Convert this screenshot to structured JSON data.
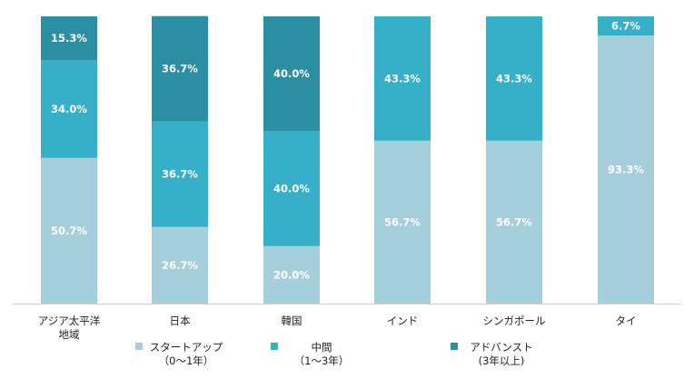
{
  "chart_data": {
    "type": "bar",
    "stacked": true,
    "categories": [
      [
        "アジア太平洋",
        "地域"
      ],
      [
        "日本"
      ],
      [
        "韓国"
      ],
      [
        "インド"
      ],
      [
        "シンガポール"
      ],
      [
        "タイ"
      ]
    ],
    "series": [
      {
        "name_lines": [
          "スタートアップ",
          "（0～1年）"
        ],
        "color": "#a6cfdc",
        "values": [
          50.7,
          26.7,
          20.0,
          56.7,
          56.7,
          93.3
        ]
      },
      {
        "name_lines": [
          "中間",
          "（1～3年）"
        ],
        "color": "#36afc8",
        "values": [
          34.0,
          36.7,
          40.0,
          43.3,
          43.3,
          6.7
        ]
      },
      {
        "name_lines": [
          "アドバンスト",
          "(3年以上)"
        ],
        "color": "#2b8ea3",
        "values": [
          15.3,
          36.7,
          40.0,
          0,
          0,
          0
        ]
      }
    ],
    "data_labels": [
      [
        "50.7%",
        "26.7%",
        "20.0%",
        "56.7%",
        "56.7%",
        "93.3%"
      ],
      [
        "34.0%",
        "36.7%",
        "40.0%",
        "43.3%",
        "43.3%",
        "6.7%"
      ],
      [
        "15.3%",
        "36.7%",
        "40.0%",
        "",
        "",
        ""
      ]
    ],
    "ylim": [
      0,
      100
    ],
    "grid": false,
    "legend_position": "bottom"
  }
}
